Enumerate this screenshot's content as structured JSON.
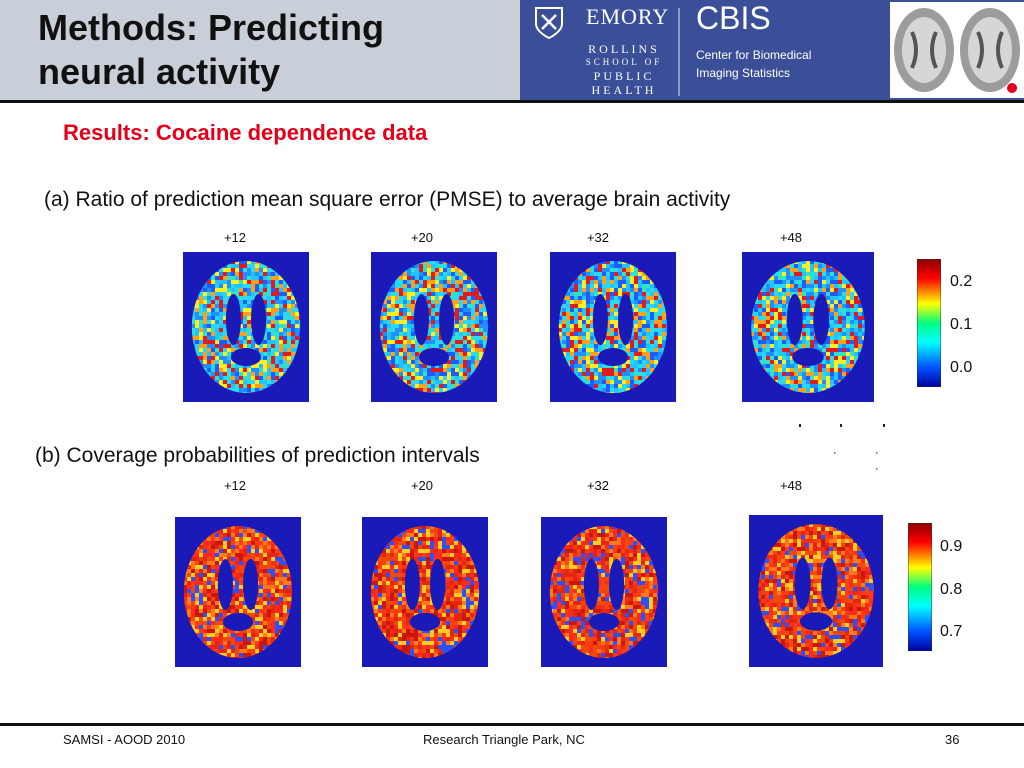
{
  "header": {
    "title_line1": "Methods: Predicting",
    "title_line2": "neural activity",
    "logo_emory": "EMORY",
    "logo_rollins": [
      "ROLLINS",
      "SCHOOL OF",
      "PUBLIC",
      "HEALTH"
    ],
    "logo_cbis": "CBIS",
    "logo_cbis_sub1": "Center for Biomedical",
    "logo_cbis_sub2": "Imaging Statistics"
  },
  "subtitle": "Results:  Cocaine dependence data",
  "panel_a": {
    "caption": "(a)  Ratio of prediction mean square error (PMSE) to average brain activity",
    "slices": [
      "+12",
      "+20",
      "+32",
      "+48"
    ],
    "colorbar_ticks": [
      "0.2",
      "0.1",
      "0.0"
    ]
  },
  "panel_b": {
    "caption": "(b)  Coverage probabilities of prediction intervals",
    "slices": [
      "+12",
      "+20",
      "+32",
      "+48"
    ],
    "colorbar_ticks": [
      "0.9",
      "0.8",
      "0.7"
    ]
  },
  "footer": {
    "left": "SAMSI - AOOD 2010",
    "center": "Research Triangle Park, NC",
    "page_number": "36"
  },
  "colors": {
    "title_red": "#e2001a",
    "header_blue": "#3a4f97",
    "header_gray": "#c9cfd8",
    "map_background": "#1a1ab8"
  }
}
